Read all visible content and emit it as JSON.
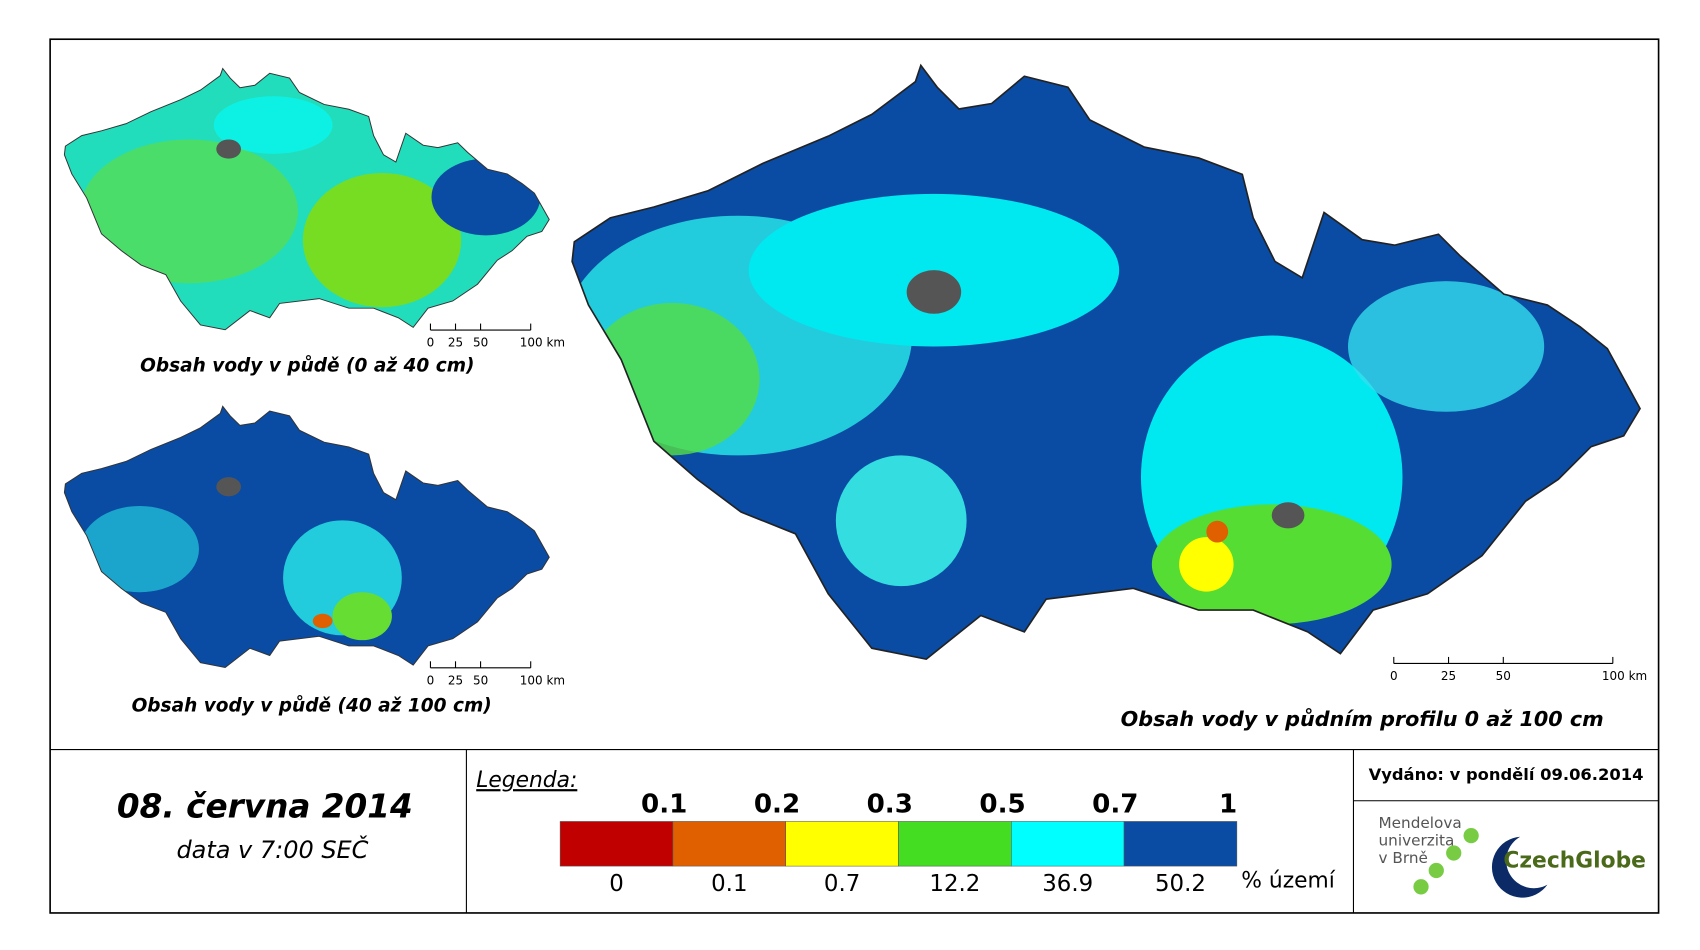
{
  "maps": [
    {
      "caption": "Obsah vody v půdě (0 až 40 cm)",
      "scale_labels": [
        "0",
        "25",
        "50",
        "100 km"
      ]
    },
    {
      "caption": "Obsah vody v půdě (40 až 100 cm)",
      "scale_labels": [
        "0",
        "25",
        "50",
        "100 km"
      ]
    },
    {
      "caption": "Obsah vody v půdním profilu 0 až 100 cm",
      "scale_labels": [
        "0",
        "25",
        "50",
        "100 km"
      ]
    }
  ],
  "date": "08. června 2014",
  "time": "data v 7:00 SEČ",
  "legend": {
    "title": "Legenda:",
    "unit": "% území",
    "classes": [
      {
        "upper": 0.1,
        "share": 0,
        "color": "#c00000"
      },
      {
        "upper": 0.2,
        "share": 0.1,
        "color": "#e06000"
      },
      {
        "upper": 0.3,
        "share": 0.7,
        "color": "#ffff00"
      },
      {
        "upper": 0.5,
        "share": 12.2,
        "color": "#44dd22"
      },
      {
        "upper": 0.7,
        "share": 36.9,
        "color": "#00ffff"
      },
      {
        "upper": 1,
        "share": 50.2,
        "color": "#0a4ba3"
      }
    ]
  },
  "issued": "Vydáno: v pondělí 09.06.2014",
  "logos": {
    "mendel": [
      "Mendelova",
      "univerzita",
      "v Brně"
    ],
    "czechglobe": "CzechGlobe"
  }
}
